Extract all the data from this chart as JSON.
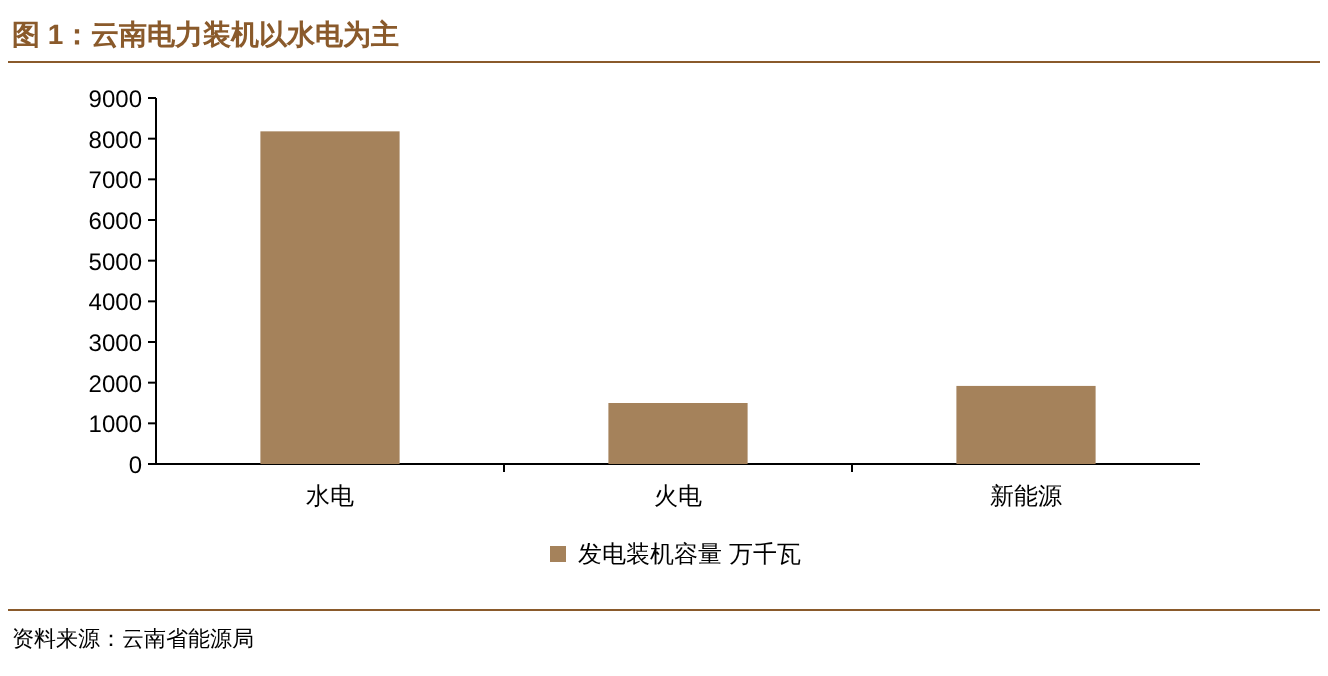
{
  "chart_data": {
    "type": "bar",
    "title": "图 1：云南电力装机以水电为主",
    "categories": [
      "水电",
      "火电",
      "新能源"
    ],
    "series": [
      {
        "name": "发电装机容量 万千瓦",
        "color": "#a5825b",
        "values": [
          8180,
          1500,
          1920
        ]
      }
    ],
    "ylim": [
      0,
      9000
    ],
    "yticks": [
      0,
      1000,
      2000,
      3000,
      4000,
      5000,
      6000,
      7000,
      8000,
      9000
    ],
    "grid": false,
    "legend": "bottom",
    "annotations": [
      "资料来源：云南省能源局"
    ]
  }
}
